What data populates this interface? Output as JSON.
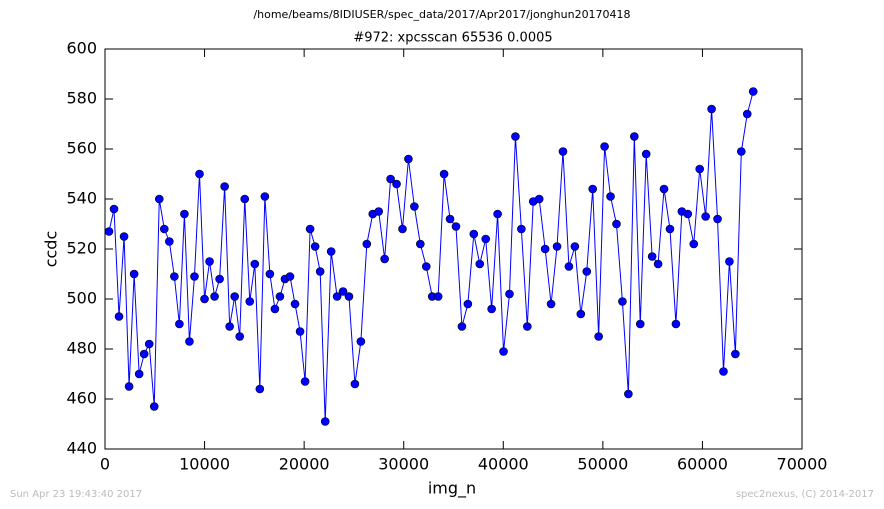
{
  "chart_data": {
    "type": "line",
    "suptitle": "/home/beams/8IDIUSER/spec_data/2017/Apr2017/jonghun20170418",
    "title": "#972: xpcsscan 65536 0.0005",
    "xlabel": "img_n",
    "ylabel": "ccdc",
    "footer_left": "Sun Apr 23 19:43:40 2017",
    "footer_right": "spec2nexus, (C) 2014-2017",
    "xlim": [
      0,
      70000
    ],
    "xticks": [
      0,
      10000,
      20000,
      30000,
      40000,
      50000,
      60000,
      70000
    ],
    "ylim": [
      440,
      600
    ],
    "yticks": [
      440,
      460,
      480,
      500,
      520,
      540,
      560,
      580,
      600
    ],
    "grid": false,
    "x": [
      400,
      905,
      1410,
      1915,
      2420,
      2925,
      3430,
      3935,
      4440,
      4945,
      5450,
      5955,
      6460,
      6965,
      7470,
      7975,
      8480,
      8985,
      9490,
      9995,
      10500,
      11005,
      11510,
      12015,
      12520,
      13025,
      13530,
      14035,
      14540,
      15045,
      15550,
      16055,
      16560,
      17065,
      17570,
      18075,
      18580,
      19085,
      19590,
      20095,
      20600,
      21105,
      21610,
      22115,
      22712,
      23309,
      23906,
      24503,
      25100,
      25697,
      26294,
      26891,
      27488,
      28085,
      28682,
      29279,
      29876,
      30473,
      31070,
      31667,
      32264,
      32861,
      33458,
      34055,
      34652,
      35249,
      35846,
      36443,
      37040,
      37637,
      38234,
      38831,
      39428,
      40025,
      40622,
      41219,
      41816,
      42413,
      43010,
      43607,
      44204,
      44801,
      45398,
      45995,
      46592,
      47189,
      47786,
      48383,
      48980,
      49577,
      50174,
      50771,
      51368,
      51965,
      52562,
      53159,
      53756,
      54353,
      54950,
      55547,
      56144,
      56741,
      57338,
      57935,
      58532,
      59129,
      59726,
      60323,
      60920,
      61517,
      62114,
      62711,
      63308,
      63905,
      64502,
      65099
    ],
    "series": [
      {
        "color": "#0000ff",
        "values": [
          527,
          536,
          493,
          525,
          465,
          510,
          470,
          478,
          482,
          457,
          540,
          528,
          523,
          509,
          490,
          534,
          483,
          509,
          550,
          500,
          515,
          501,
          508,
          545,
          489,
          501,
          485,
          540,
          499,
          514,
          464,
          541,
          510,
          496,
          501,
          508,
          509,
          498,
          487,
          467,
          528,
          521,
          511,
          451,
          519,
          501,
          503,
          501,
          466,
          483,
          522,
          534,
          535,
          516,
          548,
          546,
          528,
          556,
          537,
          522,
          513,
          501,
          501,
          550,
          532,
          529,
          489,
          498,
          526,
          514,
          524,
          496,
          534,
          479,
          502,
          565,
          528,
          489,
          539,
          540,
          520,
          498,
          521,
          559,
          513,
          521,
          494,
          511,
          544,
          485,
          561,
          541,
          530,
          499,
          462,
          565,
          490,
          558,
          517,
          514,
          544,
          528,
          490,
          535,
          534,
          522,
          552,
          533,
          576,
          532,
          471,
          515,
          478,
          559,
          574,
          583
        ]
      }
    ]
  }
}
